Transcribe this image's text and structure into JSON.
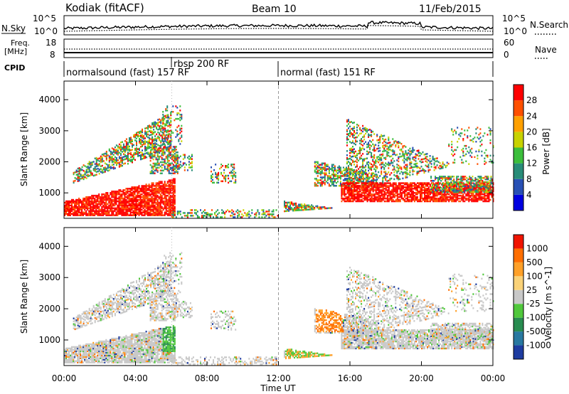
{
  "header": {
    "station": "Kodiak (fitACF)",
    "beam": "Beam 10",
    "date": "11/Feb/2015"
  },
  "top_panels": {
    "nsky_label": "N.Sky",
    "nsearch_label": "N.Search",
    "sky_ticks": [
      "10^5",
      "10^0"
    ],
    "search_ticks": [
      "10^5",
      "10^0"
    ],
    "freq_label_line1": "Freq.",
    "freq_label_line2": "[MHz]",
    "freq_ticks": [
      "18",
      "8"
    ],
    "nave_label": "Nave",
    "nave_ticks": [
      "60",
      "0"
    ],
    "cpid_label": "CPID",
    "modes": [
      {
        "label": "normalsound (fast) 157 RF",
        "start_hour": 0
      },
      {
        "label": "rbsp 200 RF",
        "start_hour": 6
      },
      {
        "label": "normal (fast) 151 RF",
        "start_hour": 12
      }
    ]
  },
  "x_axis": {
    "label": "Time UT",
    "ticks": [
      "00:00",
      "04:00",
      "08:00",
      "12:00",
      "16:00",
      "20:00",
      "00:00"
    ],
    "range_hours": [
      0,
      24
    ]
  },
  "chart_data": [
    {
      "type": "heatmap",
      "title": "",
      "parameter": "Power",
      "colorbar_label": "Power [dB]",
      "colorbar_ticks": [
        "28",
        "24",
        "20",
        "16",
        "12",
        "8",
        "4"
      ],
      "colorbar_range": [
        0,
        30
      ],
      "colors": [
        "#0000e0",
        "#2850b4",
        "#288c78",
        "#3cbe3c",
        "#c8d200",
        "#ffa000",
        "#ff5000",
        "#ff0000"
      ],
      "xlabel": "Time UT",
      "ylabel": "Slant Range [km]",
      "y_ticks": [
        "1000",
        "2000",
        "3000",
        "4000"
      ],
      "ylim_km": [
        180,
        4600
      ],
      "xlim_hours": [
        0,
        24
      ]
    },
    {
      "type": "heatmap",
      "title": "",
      "parameter": "Velocity",
      "colorbar_label": "Velocity [m s^-1]",
      "colorbar_ticks": [
        "1000",
        "500",
        "100",
        "25",
        "-25",
        "-100",
        "-500",
        "-1000"
      ],
      "colors": [
        "#1e3ca0",
        "#2878a0",
        "#288c50",
        "#50c83c",
        "#c8c8c8",
        "#fad278",
        "#ffa028",
        "#ff6e00",
        "#f01400"
      ],
      "xlabel": "Time UT",
      "ylabel": "Slant Range [km]",
      "y_ticks": [
        "1000",
        "2000",
        "3000",
        "4000"
      ],
      "ylim_km": [
        180,
        4600
      ],
      "xlim_hours": [
        0,
        24
      ]
    }
  ]
}
